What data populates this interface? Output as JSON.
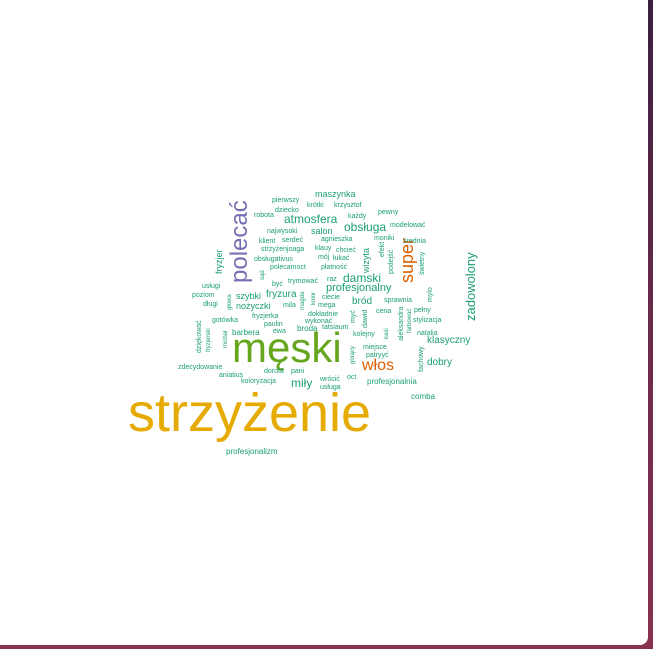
{
  "colors": {
    "teal": "#1b9e77",
    "orange": "#d95f02",
    "purple": "#7570b3",
    "green": "#66a61e",
    "gold": "#e6ab02"
  },
  "words": [
    {
      "text": "strzyżenie",
      "color": "gold"
    },
    {
      "text": "męski",
      "color": "green"
    },
    {
      "text": "polecać",
      "color": "purple"
    },
    {
      "text": "włos",
      "color": "orange"
    },
    {
      "text": "super",
      "color": "orange"
    },
    {
      "text": "zadowolony",
      "color": "teal"
    },
    {
      "text": "damski",
      "color": "teal"
    },
    {
      "text": "atmosfera",
      "color": "teal"
    },
    {
      "text": "obsługa",
      "color": "teal"
    },
    {
      "text": "miły",
      "color": "teal"
    },
    {
      "text": "profesjonalny",
      "color": "teal"
    },
    {
      "text": "klasyczny",
      "color": "teal"
    },
    {
      "text": "dobry",
      "color": "teal"
    },
    {
      "text": "maszynka",
      "color": "teal"
    },
    {
      "text": "salon",
      "color": "teal"
    },
    {
      "text": "fryzura",
      "color": "teal"
    },
    {
      "text": "bród",
      "color": "teal"
    },
    {
      "text": "szybki",
      "color": "teal"
    },
    {
      "text": "nożyczki",
      "color": "teal"
    },
    {
      "text": "barbera",
      "color": "teal"
    },
    {
      "text": "broda",
      "color": "teal"
    },
    {
      "text": "comba",
      "color": "teal"
    },
    {
      "text": "profesjonalnia",
      "color": "teal"
    },
    {
      "text": "profesjonalizm",
      "color": "teal"
    },
    {
      "text": "wizyta",
      "color": "teal"
    },
    {
      "text": "fryzjer",
      "color": "teal"
    },
    {
      "text": "pierwszy",
      "color": "teal"
    },
    {
      "text": "krótki",
      "color": "teal"
    },
    {
      "text": "krzysztof",
      "color": "teal"
    },
    {
      "text": "dziecko",
      "color": "teal"
    },
    {
      "text": "robota",
      "color": "teal"
    },
    {
      "text": "każdy",
      "color": "teal"
    },
    {
      "text": "pewny",
      "color": "teal"
    },
    {
      "text": "najwysoki",
      "color": "teal"
    },
    {
      "text": "modelować",
      "color": "teal"
    },
    {
      "text": "klient",
      "color": "teal"
    },
    {
      "text": "serdeć",
      "color": "teal"
    },
    {
      "text": "agnieszka",
      "color": "teal"
    },
    {
      "text": "moniki",
      "color": "teal"
    },
    {
      "text": "średnia",
      "color": "teal"
    },
    {
      "text": "strzyżenjoaga",
      "color": "teal"
    },
    {
      "text": "klauy",
      "color": "teal"
    },
    {
      "text": "chcieć",
      "color": "teal"
    },
    {
      "text": "obsługativus",
      "color": "teal"
    },
    {
      "text": "mój",
      "color": "teal"
    },
    {
      "text": "łukać",
      "color": "teal"
    },
    {
      "text": "polecamoct",
      "color": "teal"
    },
    {
      "text": "płatność",
      "color": "teal"
    },
    {
      "text": "efekt",
      "color": "teal"
    },
    {
      "text": "podejść",
      "color": "teal"
    },
    {
      "text": "świetny",
      "color": "teal"
    },
    {
      "text": "trymować",
      "color": "teal"
    },
    {
      "text": "raz",
      "color": "teal"
    },
    {
      "text": "usługi",
      "color": "teal"
    },
    {
      "text": "poziom",
      "color": "teal"
    },
    {
      "text": "długi",
      "color": "teal"
    },
    {
      "text": "być",
      "color": "teal"
    },
    {
      "text": "sąd",
      "color": "teal"
    },
    {
      "text": "głowa",
      "color": "teal"
    },
    {
      "text": "ciecie",
      "color": "teal"
    },
    {
      "text": "mega",
      "color": "teal"
    },
    {
      "text": "sprawnia",
      "color": "teal"
    },
    {
      "text": "mylo",
      "color": "teal"
    },
    {
      "text": "mila",
      "color": "teal"
    },
    {
      "text": "magda",
      "color": "teal"
    },
    {
      "text": "kolor",
      "color": "teal"
    },
    {
      "text": "dokładnie",
      "color": "teal"
    },
    {
      "text": "cena",
      "color": "teal"
    },
    {
      "text": "pełny",
      "color": "teal"
    },
    {
      "text": "stylizacja",
      "color": "teal"
    },
    {
      "text": "gotówka",
      "color": "teal"
    },
    {
      "text": "fryzjerka",
      "color": "teal"
    },
    {
      "text": "wykonać",
      "color": "teal"
    },
    {
      "text": "paulin",
      "color": "teal"
    },
    {
      "text": "tatsiaum",
      "color": "teal"
    },
    {
      "text": "myć",
      "color": "teal"
    },
    {
      "text": "dawid",
      "color": "teal"
    },
    {
      "text": "kasi",
      "color": "teal"
    },
    {
      "text": "aleksandra",
      "color": "teal"
    },
    {
      "text": "farbować",
      "color": "teal"
    },
    {
      "text": "natalia",
      "color": "teal"
    },
    {
      "text": "dziękować",
      "color": "teal"
    },
    {
      "text": "fryzjerski",
      "color": "teal"
    },
    {
      "text": "michał",
      "color": "teal"
    },
    {
      "text": "ewa",
      "color": "teal"
    },
    {
      "text": "kolejny",
      "color": "teal"
    },
    {
      "text": "miejsce",
      "color": "teal"
    },
    {
      "text": "patryyć",
      "color": "teal"
    },
    {
      "text": "gorący",
      "color": "teal"
    },
    {
      "text": "fachowy",
      "color": "teal"
    },
    {
      "text": "zdecydowanie",
      "color": "teal"
    },
    {
      "text": "dorota",
      "color": "teal"
    },
    {
      "text": "pani",
      "color": "teal"
    },
    {
      "text": "aniatius",
      "color": "teal"
    },
    {
      "text": "wrócić",
      "color": "teal"
    },
    {
      "text": "oct",
      "color": "teal"
    },
    {
      "text": "koloryzacja",
      "color": "teal"
    },
    {
      "text": "usługa",
      "color": "teal"
    }
  ]
}
